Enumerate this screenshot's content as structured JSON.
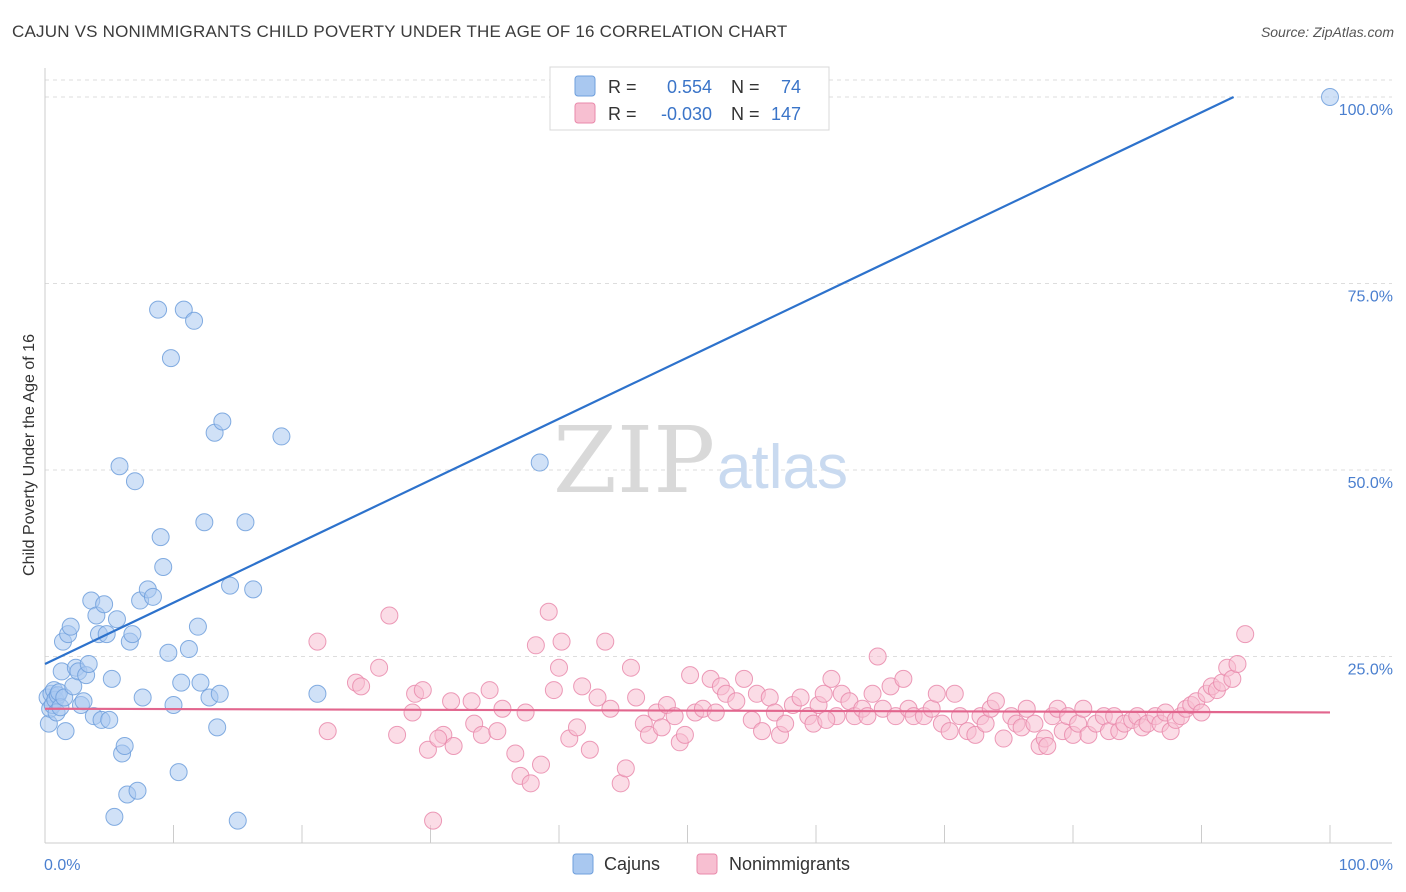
{
  "title": "CAJUN VS NONIMMIGRANTS CHILD POVERTY UNDER THE AGE OF 16 CORRELATION CHART",
  "source": "Source: ZipAtlas.com",
  "watermark": {
    "zip": "ZIP",
    "atlas": "atlas"
  },
  "colors": {
    "cajun_fill": "#a9c8f0",
    "cajun_stroke": "#6f9fdc",
    "cajun_line": "#2d72cc",
    "nonimm_fill": "#f7bfd1",
    "nonimm_stroke": "#e98aab",
    "nonimm_line": "#e2668e",
    "grid": "#dddddd",
    "tick_label": "#4a7fcf"
  },
  "legend": {
    "rows": [
      {
        "r_label": "R =",
        "r_value": "0.554",
        "n_label": "N =",
        "n_value": "74"
      },
      {
        "r_label": "R =",
        "r_value": "-0.030",
        "n_label": "N =",
        "n_value": "147"
      }
    ]
  },
  "chart_data": {
    "type": "scatter",
    "xlabel": "",
    "ylabel": "Child Poverty Under the Age of 16",
    "xlim": [
      0,
      100
    ],
    "ylim": [
      0,
      100
    ],
    "x_tick_labels": {
      "left": "0.0%",
      "right": "100.0%"
    },
    "y_tick_labels": [
      {
        "value": 100,
        "label": "100.0%"
      },
      {
        "value": 75,
        "label": "75.0%"
      },
      {
        "value": 50,
        "label": "50.0%"
      },
      {
        "value": 25,
        "label": "25.0%"
      }
    ],
    "series": [
      {
        "name": "Cajuns",
        "r": 0.554,
        "n": 74,
        "trend": {
          "x0": 0,
          "y0": 24.0,
          "x1": 92.5,
          "y1": 100
        },
        "points": [
          [
            0.2,
            19.5
          ],
          [
            0.3,
            16
          ],
          [
            0.4,
            18
          ],
          [
            0.5,
            20
          ],
          [
            0.6,
            18.5
          ],
          [
            0.7,
            20.5
          ],
          [
            0.8,
            19.2
          ],
          [
            0.9,
            17.5
          ],
          [
            1.0,
            19.8
          ],
          [
            1.1,
            20.2
          ],
          [
            1.2,
            18.2
          ],
          [
            1.3,
            23
          ],
          [
            1.4,
            27
          ],
          [
            1.5,
            19.5
          ],
          [
            1.6,
            15
          ],
          [
            1.8,
            28
          ],
          [
            2.0,
            29
          ],
          [
            2.2,
            21
          ],
          [
            2.4,
            23.5
          ],
          [
            2.6,
            23
          ],
          [
            2.8,
            18.5
          ],
          [
            3.0,
            19
          ],
          [
            3.2,
            22.5
          ],
          [
            3.4,
            24
          ],
          [
            3.6,
            32.5
          ],
          [
            3.8,
            17
          ],
          [
            4.0,
            30.5
          ],
          [
            4.2,
            28
          ],
          [
            4.4,
            16.5
          ],
          [
            4.6,
            32
          ],
          [
            4.8,
            28
          ],
          [
            5.0,
            16.5
          ],
          [
            5.2,
            22
          ],
          [
            5.4,
            3.5
          ],
          [
            5.6,
            30
          ],
          [
            5.8,
            50.5
          ],
          [
            6.0,
            12
          ],
          [
            6.2,
            13
          ],
          [
            6.4,
            6.5
          ],
          [
            6.6,
            27
          ],
          [
            6.8,
            28
          ],
          [
            7.0,
            48.5
          ],
          [
            7.2,
            7
          ],
          [
            7.4,
            32.5
          ],
          [
            7.6,
            19.5
          ],
          [
            8.0,
            34
          ],
          [
            8.4,
            33
          ],
          [
            8.8,
            71.5
          ],
          [
            9.0,
            41
          ],
          [
            9.2,
            37
          ],
          [
            9.6,
            25.5
          ],
          [
            9.8,
            65
          ],
          [
            10.0,
            18.5
          ],
          [
            10.4,
            9.5
          ],
          [
            10.6,
            21.5
          ],
          [
            10.8,
            71.5
          ],
          [
            11.2,
            26
          ],
          [
            11.6,
            70
          ],
          [
            11.9,
            29
          ],
          [
            12.1,
            21.5
          ],
          [
            12.4,
            43
          ],
          [
            12.8,
            19.5
          ],
          [
            13.2,
            55
          ],
          [
            13.4,
            15.5
          ],
          [
            13.6,
            20
          ],
          [
            13.8,
            56.5
          ],
          [
            14.4,
            34.5
          ],
          [
            15.0,
            3
          ],
          [
            15.6,
            43
          ],
          [
            16.2,
            34
          ],
          [
            18.4,
            54.5
          ],
          [
            21.2,
            20
          ],
          [
            38.5,
            51
          ],
          [
            100,
            100
          ]
        ]
      },
      {
        "name": "Nonimmigrants",
        "r": -0.03,
        "n": 147,
        "trend": {
          "x0": 0,
          "y0": 18.0,
          "x1": 100,
          "y1": 17.5
        },
        "points": [
          [
            21.2,
            27
          ],
          [
            22,
            15
          ],
          [
            24.2,
            21.5
          ],
          [
            24.6,
            21
          ],
          [
            26,
            23.5
          ],
          [
            26.8,
            30.5
          ],
          [
            27.4,
            14.5
          ],
          [
            28.6,
            17.5
          ],
          [
            28.8,
            20
          ],
          [
            29.4,
            20.5
          ],
          [
            29.8,
            12.5
          ],
          [
            30.2,
            3
          ],
          [
            31.0,
            14.5
          ],
          [
            31.6,
            19
          ],
          [
            31.8,
            13
          ],
          [
            33.2,
            19
          ],
          [
            33.4,
            16
          ],
          [
            34,
            14.5
          ],
          [
            34.6,
            20.5
          ],
          [
            35.2,
            15
          ],
          [
            35.6,
            18
          ],
          [
            36.6,
            12
          ],
          [
            37,
            9
          ],
          [
            37.4,
            17.5
          ],
          [
            37.8,
            8
          ],
          [
            38.2,
            26.5
          ],
          [
            38.6,
            10.5
          ],
          [
            39.2,
            31
          ],
          [
            39.6,
            20.5
          ],
          [
            40,
            23.5
          ],
          [
            40.2,
            27
          ],
          [
            40.8,
            14
          ],
          [
            41.4,
            15.5
          ],
          [
            41.8,
            21
          ],
          [
            42.4,
            12.5
          ],
          [
            43.0,
            19.5
          ],
          [
            43.6,
            27
          ],
          [
            44.0,
            18
          ],
          [
            44.8,
            8
          ],
          [
            45.2,
            10
          ],
          [
            45.6,
            23.5
          ],
          [
            46,
            19.5
          ],
          [
            46.6,
            16
          ],
          [
            47,
            14.5
          ],
          [
            47.6,
            17.5
          ],
          [
            48,
            15.5
          ],
          [
            48.4,
            18.5
          ],
          [
            49,
            17
          ],
          [
            49.4,
            13.5
          ],
          [
            49.8,
            14.5
          ],
          [
            50.2,
            22.5
          ],
          [
            50.6,
            17.5
          ],
          [
            51.2,
            18
          ],
          [
            51.8,
            22
          ],
          [
            52.2,
            17.5
          ],
          [
            52.6,
            21
          ],
          [
            53,
            20
          ],
          [
            53.8,
            19
          ],
          [
            54.4,
            22
          ],
          [
            55,
            16.5
          ],
          [
            55.4,
            20
          ],
          [
            55.8,
            15
          ],
          [
            56.4,
            19.5
          ],
          [
            56.8,
            17.5
          ],
          [
            57.2,
            14.5
          ],
          [
            57.6,
            16
          ],
          [
            58.2,
            18.5
          ],
          [
            58.8,
            19.5
          ],
          [
            59.4,
            17
          ],
          [
            59.8,
            16
          ],
          [
            60.2,
            18.5
          ],
          [
            60.6,
            20
          ],
          [
            61.2,
            22
          ],
          [
            61.6,
            17
          ],
          [
            62,
            20
          ],
          [
            62.6,
            19
          ],
          [
            63,
            17
          ],
          [
            63.6,
            18
          ],
          [
            64,
            17
          ],
          [
            64.4,
            20
          ],
          [
            64.8,
            25
          ],
          [
            65.2,
            18
          ],
          [
            65.8,
            21
          ],
          [
            66.2,
            17
          ],
          [
            66.8,
            22
          ],
          [
            67.2,
            18
          ],
          [
            67.6,
            17
          ],
          [
            68.4,
            17
          ],
          [
            69,
            18
          ],
          [
            69.4,
            20
          ],
          [
            69.8,
            16
          ],
          [
            70.4,
            15
          ],
          [
            70.8,
            20
          ],
          [
            71.2,
            17
          ],
          [
            71.8,
            15
          ],
          [
            72.4,
            14.5
          ],
          [
            72.8,
            17
          ],
          [
            73.2,
            16
          ],
          [
            73.6,
            18
          ],
          [
            74,
            19
          ],
          [
            74.6,
            14
          ],
          [
            75.2,
            17
          ],
          [
            75.6,
            16
          ],
          [
            76,
            15.5
          ],
          [
            76.4,
            18
          ],
          [
            77,
            16
          ],
          [
            77.4,
            13
          ],
          [
            77.8,
            14
          ],
          [
            78,
            13
          ],
          [
            78.4,
            17
          ],
          [
            78.8,
            18
          ],
          [
            79.2,
            15
          ],
          [
            79.6,
            17
          ],
          [
            80,
            14.5
          ],
          [
            80.4,
            16
          ],
          [
            80.8,
            18
          ],
          [
            81.2,
            14.5
          ],
          [
            81.8,
            16
          ],
          [
            82.4,
            17
          ],
          [
            82.8,
            15
          ],
          [
            83.2,
            17
          ],
          [
            83.6,
            15
          ],
          [
            84,
            16
          ],
          [
            84.6,
            16.5
          ],
          [
            85,
            17
          ],
          [
            85.4,
            15.5
          ],
          [
            85.8,
            16
          ],
          [
            86.4,
            17
          ],
          [
            86.8,
            16
          ],
          [
            87.2,
            17.5
          ],
          [
            87.6,
            15
          ],
          [
            88,
            16.5
          ],
          [
            88.4,
            17
          ],
          [
            88.8,
            18
          ],
          [
            89.2,
            18.5
          ],
          [
            89.6,
            19
          ],
          [
            90,
            17.5
          ],
          [
            90.4,
            20
          ],
          [
            90.8,
            21
          ],
          [
            91.2,
            20.5
          ],
          [
            91.6,
            21.5
          ],
          [
            92,
            23.5
          ],
          [
            92.4,
            22
          ],
          [
            92.8,
            24
          ],
          [
            93.4,
            28
          ],
          [
            30.6,
            14
          ],
          [
            60.8,
            16.5
          ]
        ]
      }
    ],
    "legend_position": "top-center"
  },
  "bottom_legend": {
    "items": [
      {
        "label": "Cajuns"
      },
      {
        "label": "Nonimmigrants"
      }
    ]
  }
}
